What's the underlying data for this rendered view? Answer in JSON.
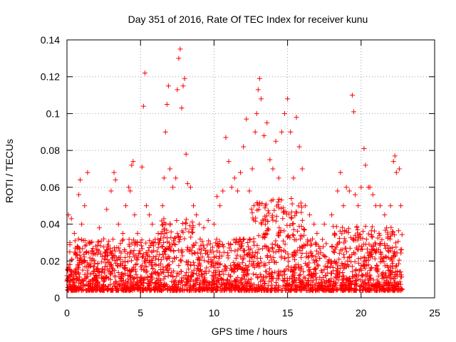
{
  "chart_data": {
    "type": "scatter",
    "title": "Day 351 of 2016, Rate Of TEC Index for receiver kunu",
    "xlabel": "GPS time / hours",
    "ylabel": "ROTI / TECUs",
    "xlim": [
      0,
      25
    ],
    "ylim": [
      0,
      0.14
    ],
    "x_ticks": [
      0,
      5,
      10,
      15,
      20,
      25
    ],
    "y_ticks": [
      0,
      0.02,
      0.04,
      0.06,
      0.08,
      0.1,
      0.12,
      0.14
    ],
    "x_tick_labels": [
      "0",
      "5",
      "10",
      "15",
      "20",
      "25"
    ],
    "y_tick_labels": [
      "0",
      "0.02",
      "0.04",
      "0.06",
      "0.08",
      "0.1",
      "0.12",
      "0.14"
    ],
    "grid": true,
    "marker": "plus",
    "color": "#ff0000",
    "series": [
      {
        "values_note": "",
        "points": [
          [
            0.0,
            0.012
          ],
          [
            0.1,
            0.045
          ],
          [
            0.2,
            0.03
          ],
          [
            0.3,
            0.043
          ],
          [
            0.5,
            0.035
          ],
          [
            0.7,
            0.028
          ],
          [
            0.8,
            0.056
          ],
          [
            0.9,
            0.064
          ],
          [
            1.0,
            0.04
          ],
          [
            1.2,
            0.05
          ],
          [
            1.4,
            0.068
          ],
          [
            1.6,
            0.03
          ],
          [
            1.8,
            0.024
          ],
          [
            2.0,
            0.026
          ],
          [
            2.2,
            0.038
          ],
          [
            2.5,
            0.032
          ],
          [
            2.7,
            0.048
          ],
          [
            3.0,
            0.058
          ],
          [
            3.2,
            0.068
          ],
          [
            3.3,
            0.064
          ],
          [
            3.5,
            0.04
          ],
          [
            3.8,
            0.035
          ],
          [
            4.0,
            0.05
          ],
          [
            4.2,
            0.06
          ],
          [
            4.3,
            0.058
          ],
          [
            4.4,
            0.072
          ],
          [
            4.5,
            0.074
          ],
          [
            4.6,
            0.045
          ],
          [
            4.8,
            0.035
          ],
          [
            5.0,
            0.03
          ],
          [
            5.1,
            0.071
          ],
          [
            5.2,
            0.104
          ],
          [
            5.3,
            0.122
          ],
          [
            5.4,
            0.05
          ],
          [
            5.6,
            0.045
          ],
          [
            5.8,
            0.04
          ],
          [
            6.0,
            0.03
          ],
          [
            6.2,
            0.035
          ],
          [
            6.5,
            0.05
          ],
          [
            6.6,
            0.065
          ],
          [
            6.7,
            0.09
          ],
          [
            6.8,
            0.105
          ],
          [
            6.9,
            0.115
          ],
          [
            7.0,
            0.07
          ],
          [
            7.2,
            0.06
          ],
          [
            7.4,
            0.065
          ],
          [
            7.5,
            0.113
          ],
          [
            7.6,
            0.13
          ],
          [
            7.7,
            0.135
          ],
          [
            7.8,
            0.103
          ],
          [
            7.9,
            0.115
          ],
          [
            8.0,
            0.119
          ],
          [
            8.1,
            0.078
          ],
          [
            8.2,
            0.062
          ],
          [
            8.4,
            0.06
          ],
          [
            8.6,
            0.05
          ],
          [
            8.8,
            0.045
          ],
          [
            9.0,
            0.04
          ],
          [
            9.3,
            0.038
          ],
          [
            9.6,
            0.042
          ],
          [
            10.0,
            0.04
          ],
          [
            10.2,
            0.055
          ],
          [
            10.4,
            0.05
          ],
          [
            10.6,
            0.058
          ],
          [
            10.8,
            0.087
          ],
          [
            11.0,
            0.074
          ],
          [
            11.2,
            0.06
          ],
          [
            11.4,
            0.065
          ],
          [
            11.6,
            0.058
          ],
          [
            11.8,
            0.068
          ],
          [
            12.0,
            0.082
          ],
          [
            12.2,
            0.097
          ],
          [
            12.4,
            0.058
          ],
          [
            12.6,
            0.07
          ],
          [
            12.8,
            0.09
          ],
          [
            12.9,
            0.1
          ],
          [
            13.0,
            0.113
          ],
          [
            13.1,
            0.119
          ],
          [
            13.2,
            0.108
          ],
          [
            13.4,
            0.088
          ],
          [
            13.6,
            0.095
          ],
          [
            13.8,
            0.075
          ],
          [
            14.0,
            0.07
          ],
          [
            14.2,
            0.085
          ],
          [
            14.4,
            0.065
          ],
          [
            14.6,
            0.09
          ],
          [
            14.8,
            0.1
          ],
          [
            15.0,
            0.108
          ],
          [
            15.2,
            0.09
          ],
          [
            15.4,
            0.065
          ],
          [
            15.6,
            0.098
          ],
          [
            15.8,
            0.082
          ],
          [
            16.0,
            0.07
          ],
          [
            16.2,
            0.05
          ],
          [
            16.5,
            0.045
          ],
          [
            16.8,
            0.04
          ],
          [
            17.0,
            0.035
          ],
          [
            17.5,
            0.04
          ],
          [
            18.0,
            0.045
          ],
          [
            18.4,
            0.058
          ],
          [
            18.6,
            0.068
          ],
          [
            18.8,
            0.05
          ],
          [
            19.0,
            0.06
          ],
          [
            19.2,
            0.058
          ],
          [
            19.4,
            0.11
          ],
          [
            19.5,
            0.101
          ],
          [
            19.6,
            0.056
          ],
          [
            19.8,
            0.05
          ],
          [
            20.0,
            0.06
          ],
          [
            20.2,
            0.081
          ],
          [
            20.3,
            0.072
          ],
          [
            20.5,
            0.06
          ],
          [
            20.6,
            0.06
          ],
          [
            20.8,
            0.056
          ],
          [
            21.0,
            0.05
          ],
          [
            21.3,
            0.05
          ],
          [
            21.6,
            0.045
          ],
          [
            22.0,
            0.05
          ],
          [
            22.2,
            0.074
          ],
          [
            22.3,
            0.077
          ],
          [
            22.4,
            0.068
          ],
          [
            22.6,
            0.07
          ],
          [
            22.7,
            0.05
          ]
        ]
      }
    ]
  }
}
